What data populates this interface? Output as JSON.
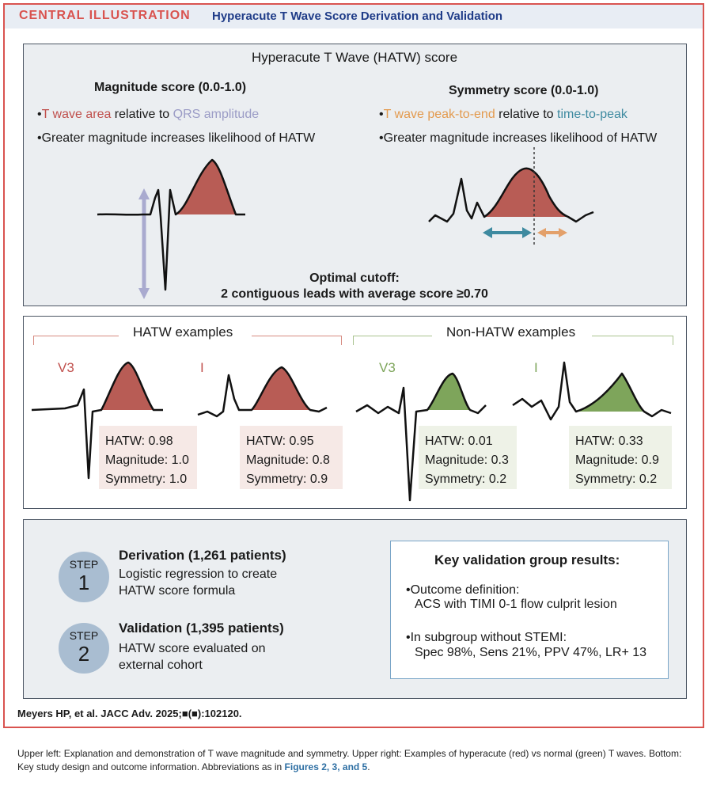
{
  "header": {
    "tag": "CENTRAL ILLUSTRATION",
    "title": "Hyperacute T Wave Score Derivation and Validation"
  },
  "colors": {
    "hatw_red": "#b85c55",
    "normal_green": "#7ea55b",
    "accent_red": "#d9534f",
    "teal": "#3e8aa0",
    "orange": "#e39a4e",
    "lavender": "#9b9cc6"
  },
  "score_panel": {
    "title": "Hyperacute T Wave (HATW) score",
    "magnitude": {
      "heading": "Magnitude score (0.0-1.0)",
      "b1_a": "T wave area",
      "b1_b": " relative to ",
      "b1_c": "QRS amplitude",
      "b2": "Greater magnitude increases likelihood of HATW"
    },
    "symmetry": {
      "heading": "Symmetry score (0.0-1.0)",
      "b1_a": "T wave peak-to-end",
      "b1_b": " relative to ",
      "b1_c": "time-to-peak",
      "b2": "Greater magnitude increases likelihood of HATW"
    },
    "cutoff_line1": "Optimal cutoff:",
    "cutoff_line2": "2 contiguous leads with average score ≥0.70"
  },
  "examples_panel": {
    "hatw_label": "HATW examples",
    "non_hatw_label": "Non-HATW examples",
    "examples": [
      {
        "lead": "V3",
        "hatw": "HATW: 0.98",
        "magnitude": "Magnitude: 1.0",
        "symmetry": "Symmetry: 1.0",
        "score": 0.98
      },
      {
        "lead": "I",
        "hatw": "HATW: 0.95",
        "magnitude": "Magnitude: 0.8",
        "symmetry": "Symmetry: 0.9",
        "score": 0.95
      },
      {
        "lead": "V3",
        "hatw": "HATW: 0.01",
        "magnitude": "Magnitude: 0.3",
        "symmetry": "Symmetry: 0.2",
        "score": 0.01
      },
      {
        "lead": "I",
        "hatw": "HATW: 0.33",
        "magnitude": "Magnitude: 0.9",
        "symmetry": "Symmetry: 0.2",
        "score": 0.33
      }
    ]
  },
  "steps_panel": {
    "step_word": "STEP",
    "step1": {
      "num": "1",
      "title": "Derivation (1,261 patients)",
      "line1": "Logistic regression to create",
      "line2": "HATW score formula"
    },
    "step2": {
      "num": "2",
      "title": "Validation (1,395 patients)",
      "line1": "HATW score evaluated on",
      "line2": "external cohort"
    },
    "key_results": {
      "title": "Key validation group results:",
      "b1_l1": "Outcome definition:",
      "b1_l2": "ACS with TIMI 0-1 flow culprit lesion",
      "b2_l1": "In subgroup without STEMI:",
      "b2_l2": "Spec 98%, Sens 21%, PPV 47%, LR+ 13"
    }
  },
  "citation": "Meyers HP, et al. JACC Adv. 2025;■(■):102120.",
  "caption": {
    "text": "Upper left: Explanation and demonstration of T wave magnitude and symmetry. Upper right: Examples of hyperacute (red) vs normal (green) T waves. Bottom: Key study design and outcome information. Abbreviations as in ",
    "figs": "Figures 2, 3, and 5",
    "end": "."
  }
}
